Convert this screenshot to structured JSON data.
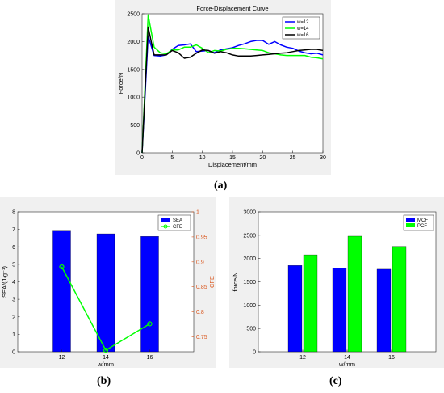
{
  "captions": {
    "a": "(a)",
    "b": "(b)",
    "c": "(c)"
  },
  "chart_data": [
    {
      "id": "a",
      "type": "line",
      "title": "Force-Displacement Curve",
      "xlabel": "Displacement/mm",
      "ylabel": "Force/N",
      "xlim": [
        0,
        30
      ],
      "ylim": [
        0,
        2500
      ],
      "xticks": [
        0,
        5,
        10,
        15,
        20,
        25,
        30
      ],
      "yticks": [
        0,
        500,
        1000,
        1500,
        2000,
        2500
      ],
      "legend_position": "top-right",
      "grid": false,
      "series": [
        {
          "name": "w=12",
          "color": "#0000ff",
          "x": [
            0,
            1,
            2,
            3,
            4,
            5,
            6,
            7,
            8,
            9,
            10,
            11,
            12,
            13,
            14,
            15,
            16,
            17,
            18,
            19,
            20,
            21,
            22,
            23,
            24,
            25,
            26,
            27,
            28,
            29,
            30
          ],
          "y": [
            0,
            2100,
            1750,
            1740,
            1760,
            1860,
            1930,
            1940,
            1960,
            1820,
            1830,
            1840,
            1800,
            1850,
            1870,
            1890,
            1930,
            1960,
            2000,
            2020,
            2020,
            1950,
            2000,
            1940,
            1900,
            1880,
            1830,
            1800,
            1780,
            1790,
            1760
          ]
        },
        {
          "name": "w=14",
          "color": "#00ff00",
          "x": [
            0,
            1,
            2,
            3,
            4,
            5,
            6,
            7,
            8,
            9,
            10,
            11,
            12,
            13,
            14,
            15,
            16,
            17,
            18,
            19,
            20,
            21,
            22,
            23,
            24,
            25,
            26,
            27,
            28,
            29,
            30
          ],
          "y": [
            0,
            2480,
            1900,
            1800,
            1780,
            1850,
            1850,
            1900,
            1900,
            1940,
            1880,
            1800,
            1840,
            1830,
            1860,
            1880,
            1880,
            1870,
            1860,
            1850,
            1840,
            1800,
            1780,
            1760,
            1750,
            1750,
            1750,
            1750,
            1720,
            1710,
            1690
          ]
        },
        {
          "name": "w=16",
          "color": "#000000",
          "x": [
            0,
            1,
            2,
            3,
            4,
            5,
            6,
            7,
            8,
            9,
            10,
            11,
            12,
            13,
            14,
            15,
            16,
            17,
            18,
            19,
            20,
            21,
            22,
            23,
            24,
            25,
            26,
            27,
            28,
            29,
            30
          ],
          "y": [
            0,
            2260,
            1760,
            1760,
            1760,
            1840,
            1800,
            1700,
            1720,
            1790,
            1850,
            1840,
            1790,
            1820,
            1800,
            1760,
            1740,
            1740,
            1740,
            1750,
            1760,
            1770,
            1780,
            1790,
            1800,
            1820,
            1840,
            1850,
            1860,
            1860,
            1840
          ]
        }
      ]
    },
    {
      "id": "b",
      "type": "bar",
      "xlabel": "w/mm",
      "ylabel": "SEA/(J·g⁻¹)",
      "ylabel_right": "CFE",
      "categories": [
        "12",
        "14",
        "16"
      ],
      "ylim": [
        0,
        8
      ],
      "yticks": [
        0,
        1,
        2,
        3,
        4,
        5,
        6,
        7,
        8
      ],
      "ylim_right": [
        0.72,
        1
      ],
      "yticks_right": [
        "0.75",
        "0.8",
        "0.85",
        "0.9",
        "0.95",
        "1"
      ],
      "right_axis_color": "#d95319",
      "legend_position": "top-right",
      "series": [
        {
          "name": "SEA",
          "type": "bar",
          "color": "#0000ff",
          "values": [
            6.9,
            6.75,
            6.6
          ]
        },
        {
          "name": "CFE",
          "type": "line",
          "color": "#00ff00",
          "axis": "right",
          "values": [
            0.89,
            0.723,
            0.776
          ]
        }
      ]
    },
    {
      "id": "c",
      "type": "bar",
      "xlabel": "w/mm",
      "ylabel": "force/N",
      "categories": [
        "12",
        "14",
        "16"
      ],
      "ylim": [
        0,
        3000
      ],
      "yticks": [
        0,
        500,
        1000,
        1500,
        2000,
        2500,
        3000
      ],
      "legend_position": "top-right",
      "series": [
        {
          "name": "MCF",
          "color": "#0000ff",
          "values": [
            1850,
            1800,
            1770
          ]
        },
        {
          "name": "PCF",
          "color": "#00ff00",
          "values": [
            2080,
            2480,
            2260
          ]
        }
      ]
    }
  ]
}
